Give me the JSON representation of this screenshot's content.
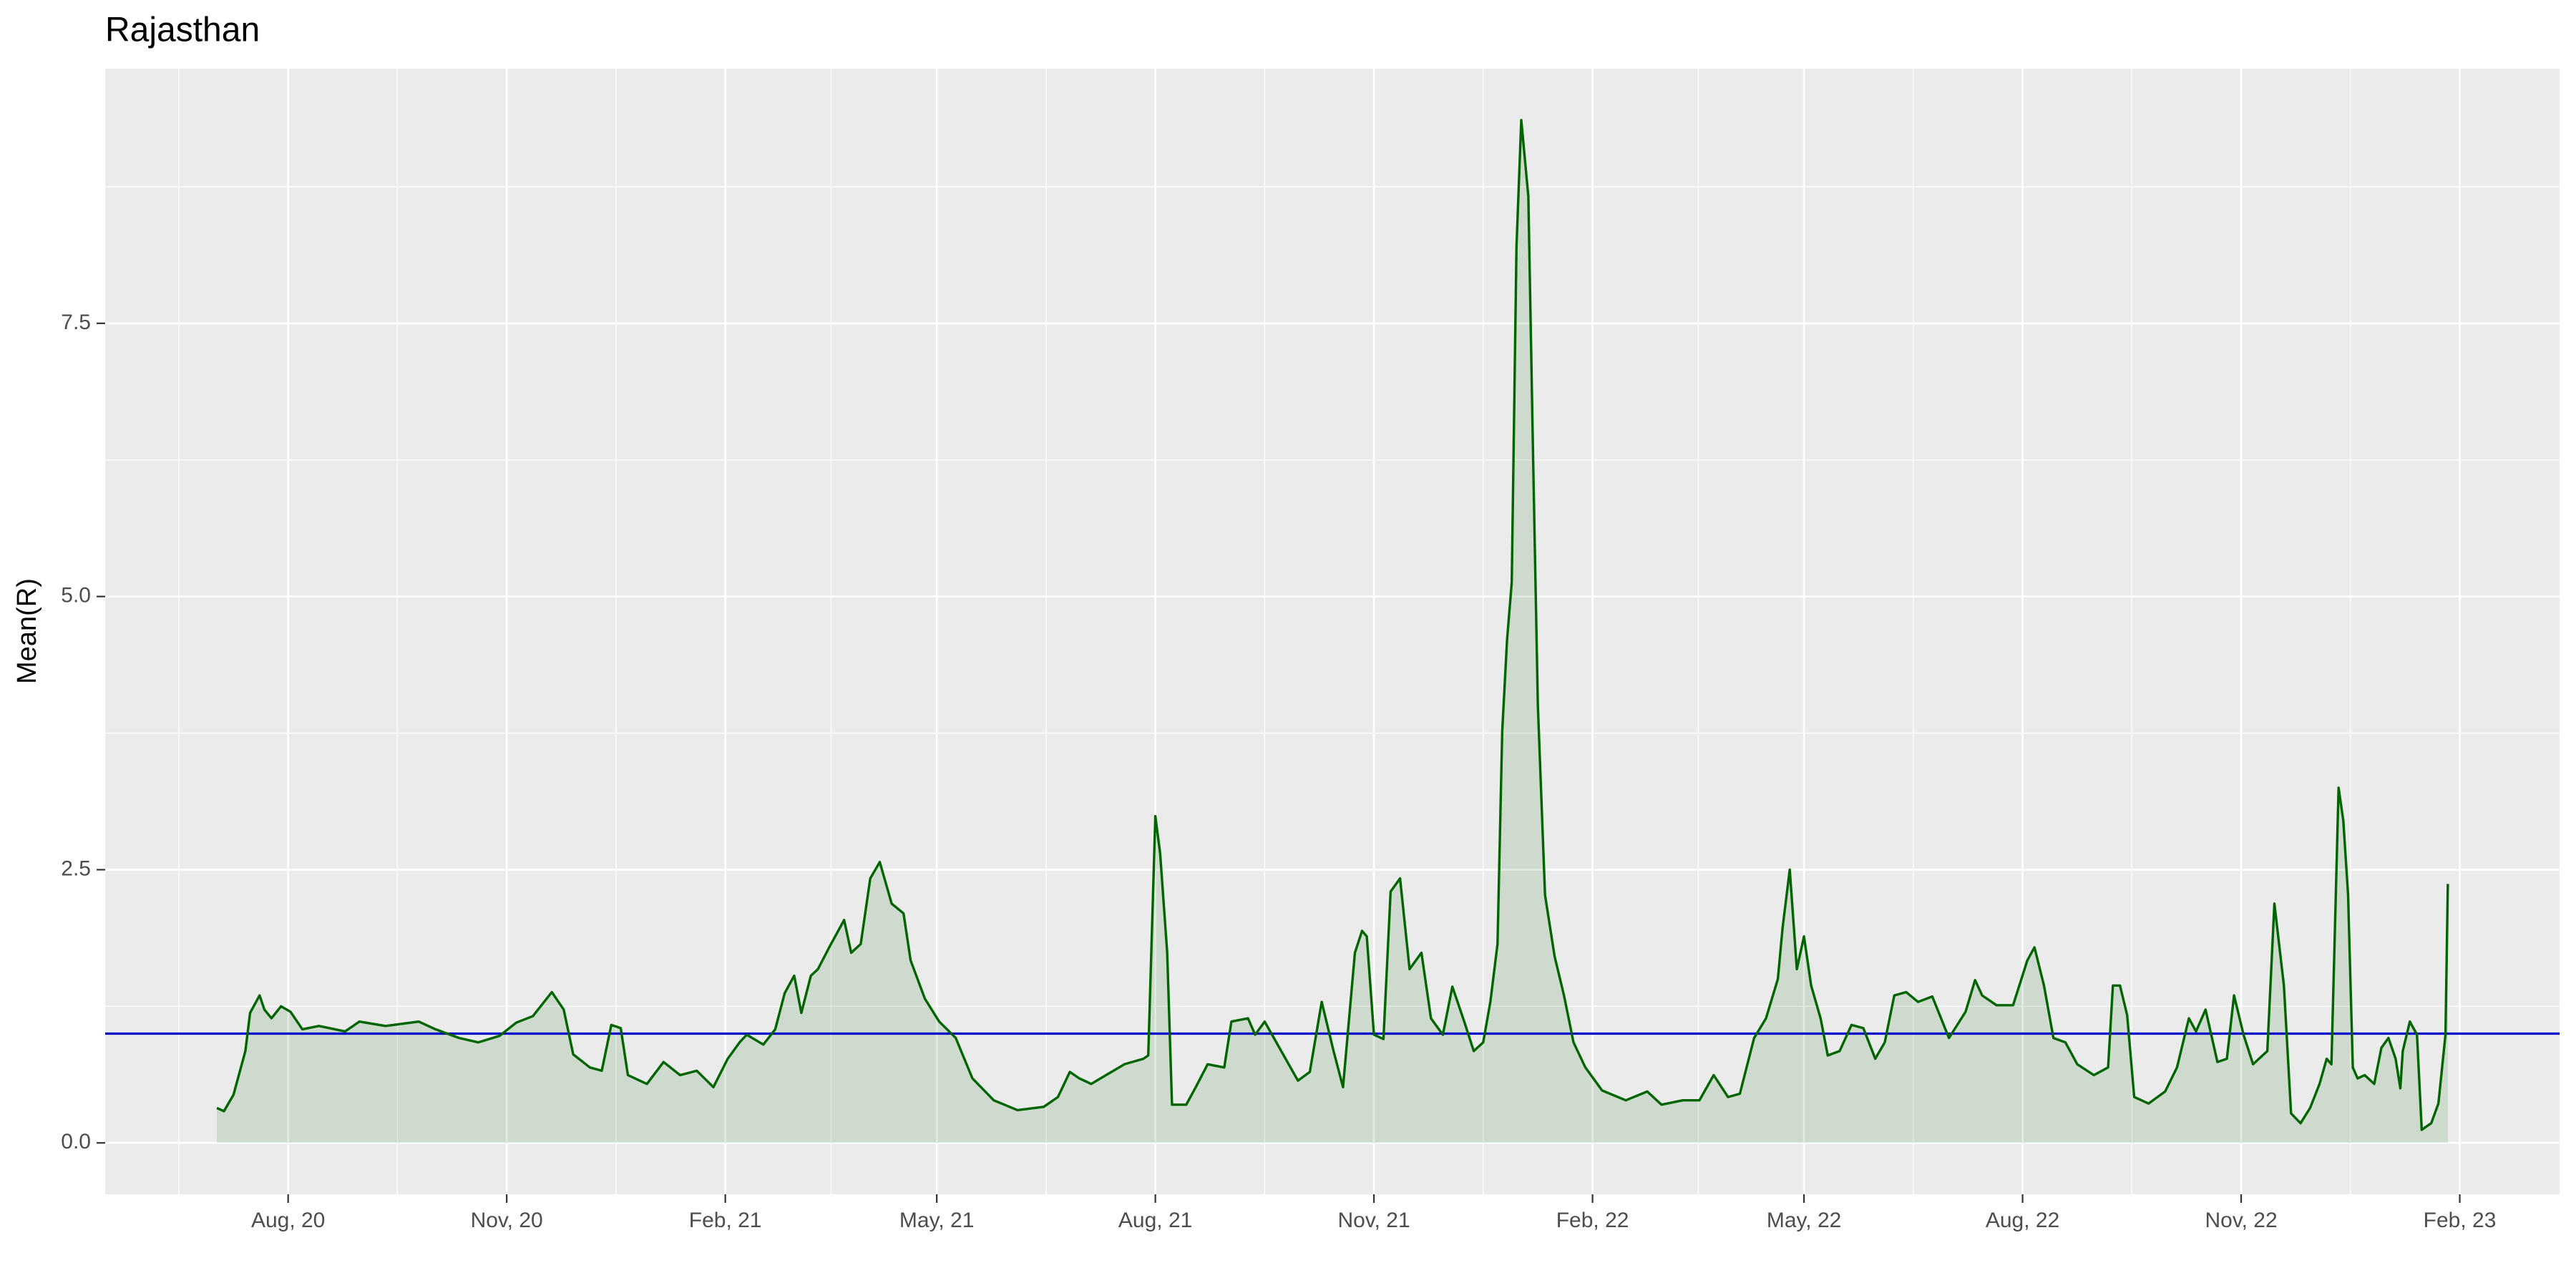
{
  "chart_data": {
    "type": "area",
    "title": "Rajasthan",
    "ylabel": "Mean(R)",
    "color": "#006400",
    "hline": 1,
    "hline_color": "#0000cc",
    "grid": true,
    "xlim": [
      "2020-05-16",
      "2023-03-15"
    ],
    "ylim": [
      -0.47,
      9.83
    ],
    "yticks": [
      {
        "value": 0,
        "label": "0.0"
      },
      {
        "value": 2.5,
        "label": "2.5"
      },
      {
        "value": 5,
        "label": "5.0"
      },
      {
        "value": 7.5,
        "label": "7.5"
      }
    ],
    "xticks": [
      {
        "value": "2020-08-01",
        "label": "Aug, 20"
      },
      {
        "value": "2020-11-01",
        "label": "Nov, 20"
      },
      {
        "value": "2021-02-01",
        "label": "Feb, 21"
      },
      {
        "value": "2021-05-01",
        "label": "May, 21"
      },
      {
        "value": "2021-08-01",
        "label": "Aug, 21"
      },
      {
        "value": "2021-11-01",
        "label": "Nov, 21"
      },
      {
        "value": "2022-02-01",
        "label": "Feb, 22"
      },
      {
        "value": "2022-05-01",
        "label": "May, 22"
      },
      {
        "value": "2022-08-01",
        "label": "Aug, 22"
      },
      {
        "value": "2022-11-01",
        "label": "Nov, 22"
      },
      {
        "value": "2023-02-01",
        "label": "Feb, 23"
      }
    ],
    "x": [
      "2020-07-02",
      "2020-07-05",
      "2020-07-09",
      "2020-07-14",
      "2020-07-16",
      "2020-07-20",
      "2020-07-22",
      "2020-07-25",
      "2020-07-29",
      "2020-08-02",
      "2020-08-07",
      "2020-08-14",
      "2020-08-25",
      "2020-08-31",
      "2020-09-11",
      "2020-09-25",
      "2020-10-02",
      "2020-10-12",
      "2020-10-20",
      "2020-10-29",
      "2020-11-05",
      "2020-11-12",
      "2020-11-20",
      "2020-11-25",
      "2020-11-29",
      "2020-12-06",
      "2020-12-11",
      "2020-12-15",
      "2020-12-19",
      "2020-12-22",
      "2020-12-30",
      "2021-01-06",
      "2021-01-13",
      "2021-01-20",
      "2021-01-27",
      "2021-02-02",
      "2021-02-07",
      "2021-02-10",
      "2021-02-17",
      "2021-02-22",
      "2021-02-26",
      "2021-03-02",
      "2021-03-05",
      "2021-03-09",
      "2021-03-12",
      "2021-03-17",
      "2021-03-23",
      "2021-03-26",
      "2021-03-30",
      "2021-04-03",
      "2021-04-07",
      "2021-04-12",
      "2021-04-17",
      "2021-04-20",
      "2021-04-26",
      "2021-05-02",
      "2021-05-09",
      "2021-05-16",
      "2021-05-25",
      "2021-06-04",
      "2021-06-15",
      "2021-06-21",
      "2021-06-26",
      "2021-06-30",
      "2021-07-05",
      "2021-07-12",
      "2021-07-19",
      "2021-07-27",
      "2021-07-29",
      "2021-08-01",
      "2021-08-03",
      "2021-08-06",
      "2021-08-08",
      "2021-08-14",
      "2021-08-18",
      "2021-08-23",
      "2021-08-30",
      "2021-09-02",
      "2021-09-09",
      "2021-09-12",
      "2021-09-16",
      "2021-09-23",
      "2021-09-30",
      "2021-10-05",
      "2021-10-10",
      "2021-10-15",
      "2021-10-19",
      "2021-10-24",
      "2021-10-27",
      "2021-10-29",
      "2021-11-01",
      "2021-11-05",
      "2021-11-08",
      "2021-11-12",
      "2021-11-16",
      "2021-11-21",
      "2021-11-25",
      "2021-11-30",
      "2021-12-04",
      "2021-12-09",
      "2021-12-13",
      "2021-12-17",
      "2021-12-20",
      "2021-12-23",
      "2021-12-25",
      "2021-12-27",
      "2021-12-29",
      "2021-12-31",
      "2022-01-02",
      "2022-01-05",
      "2022-01-07",
      "2022-01-09",
      "2022-01-12",
      "2022-01-16",
      "2022-01-20",
      "2022-01-24",
      "2022-01-29",
      "2022-02-05",
      "2022-02-15",
      "2022-02-24",
      "2022-03-02",
      "2022-03-11",
      "2022-03-18",
      "2022-03-24",
      "2022-03-30",
      "2022-04-04",
      "2022-04-10",
      "2022-04-15",
      "2022-04-20",
      "2022-04-22",
      "2022-04-25",
      "2022-04-28",
      "2022-05-01",
      "2022-05-04",
      "2022-05-08",
      "2022-05-11",
      "2022-05-16",
      "2022-05-21",
      "2022-05-26",
      "2022-05-31",
      "2022-06-04",
      "2022-06-08",
      "2022-06-13",
      "2022-06-18",
      "2022-06-24",
      "2022-07-01",
      "2022-07-08",
      "2022-07-12",
      "2022-07-15",
      "2022-07-21",
      "2022-07-28",
      "2022-08-03",
      "2022-08-06",
      "2022-08-10",
      "2022-08-14",
      "2022-08-19",
      "2022-08-24",
      "2022-08-31",
      "2022-09-06",
      "2022-09-08",
      "2022-09-11",
      "2022-09-14",
      "2022-09-17",
      "2022-09-23",
      "2022-09-30",
      "2022-10-05",
      "2022-10-10",
      "2022-10-13",
      "2022-10-17",
      "2022-10-22",
      "2022-10-26",
      "2022-10-29",
      "2022-11-02",
      "2022-11-06",
      "2022-11-12",
      "2022-11-15",
      "2022-11-19",
      "2022-11-22",
      "2022-11-26",
      "2022-11-30",
      "2022-12-04",
      "2022-12-07",
      "2022-12-09",
      "2022-12-12",
      "2022-12-14",
      "2022-12-16",
      "2022-12-18",
      "2022-12-20",
      "2022-12-23",
      "2022-12-27",
      "2022-12-30",
      "2023-01-02",
      "2023-01-05",
      "2023-01-07",
      "2023-01-08",
      "2023-01-11",
      "2023-01-14",
      "2023-01-16",
      "2023-01-20",
      "2023-01-23",
      "2023-01-26",
      "2023-01-27"
    ],
    "values": [
      0.32,
      0.29,
      0.44,
      0.84,
      1.19,
      1.35,
      1.22,
      1.14,
      1.25,
      1.2,
      1.04,
      1.07,
      1.02,
      1.11,
      1.07,
      1.11,
      1.04,
      0.96,
      0.92,
      0.98,
      1.1,
      1.16,
      1.38,
      1.22,
      0.81,
      0.69,
      0.66,
      1.08,
      1.05,
      0.62,
      0.54,
      0.74,
      0.62,
      0.66,
      0.51,
      0.77,
      0.92,
      0.99,
      0.9,
      1.04,
      1.37,
      1.53,
      1.19,
      1.53,
      1.59,
      1.8,
      2.04,
      1.74,
      1.82,
      2.42,
      2.57,
      2.19,
      2.1,
      1.67,
      1.32,
      1.11,
      0.96,
      0.59,
      0.39,
      0.3,
      0.33,
      0.42,
      0.65,
      0.59,
      0.54,
      0.63,
      0.72,
      0.77,
      0.8,
      2.99,
      2.65,
      1.74,
      0.35,
      0.35,
      0.51,
      0.72,
      0.69,
      1.11,
      1.14,
      0.99,
      1.11,
      0.84,
      0.57,
      0.65,
      1.29,
      0.84,
      0.51,
      1.74,
      1.94,
      1.89,
      0.99,
      0.95,
      2.3,
      2.42,
      1.59,
      1.74,
      1.14,
      0.99,
      1.43,
      1.11,
      0.84,
      0.92,
      1.29,
      1.82,
      3.77,
      4.6,
      5.13,
      8.2,
      9.36,
      8.66,
      6.25,
      4.0,
      2.27,
      1.71,
      1.35,
      0.92,
      0.69,
      0.48,
      0.39,
      0.47,
      0.35,
      0.39,
      0.39,
      0.62,
      0.42,
      0.45,
      0.96,
      1.14,
      1.5,
      1.97,
      2.5,
      1.59,
      1.89,
      1.44,
      1.14,
      0.8,
      0.84,
      1.08,
      1.05,
      0.77,
      0.92,
      1.35,
      1.38,
      1.29,
      1.34,
      0.96,
      1.2,
      1.49,
      1.35,
      1.26,
      1.26,
      1.67,
      1.79,
      1.44,
      0.96,
      0.92,
      0.72,
      0.62,
      0.69,
      1.44,
      1.44,
      1.17,
      0.42,
      0.36,
      0.47,
      0.69,
      1.14,
      1.02,
      1.22,
      0.74,
      0.77,
      1.35,
      0.99,
      0.72,
      0.84,
      2.19,
      1.44,
      0.27,
      0.18,
      0.32,
      0.54,
      0.77,
      0.72,
      3.25,
      2.95,
      2.27,
      0.69,
      0.59,
      0.62,
      0.54,
      0.87,
      0.96,
      0.77,
      0.5,
      0.84,
      1.11,
      0.99,
      0.12,
      0.18,
      0.36,
      0.99,
      2.37
    ]
  }
}
